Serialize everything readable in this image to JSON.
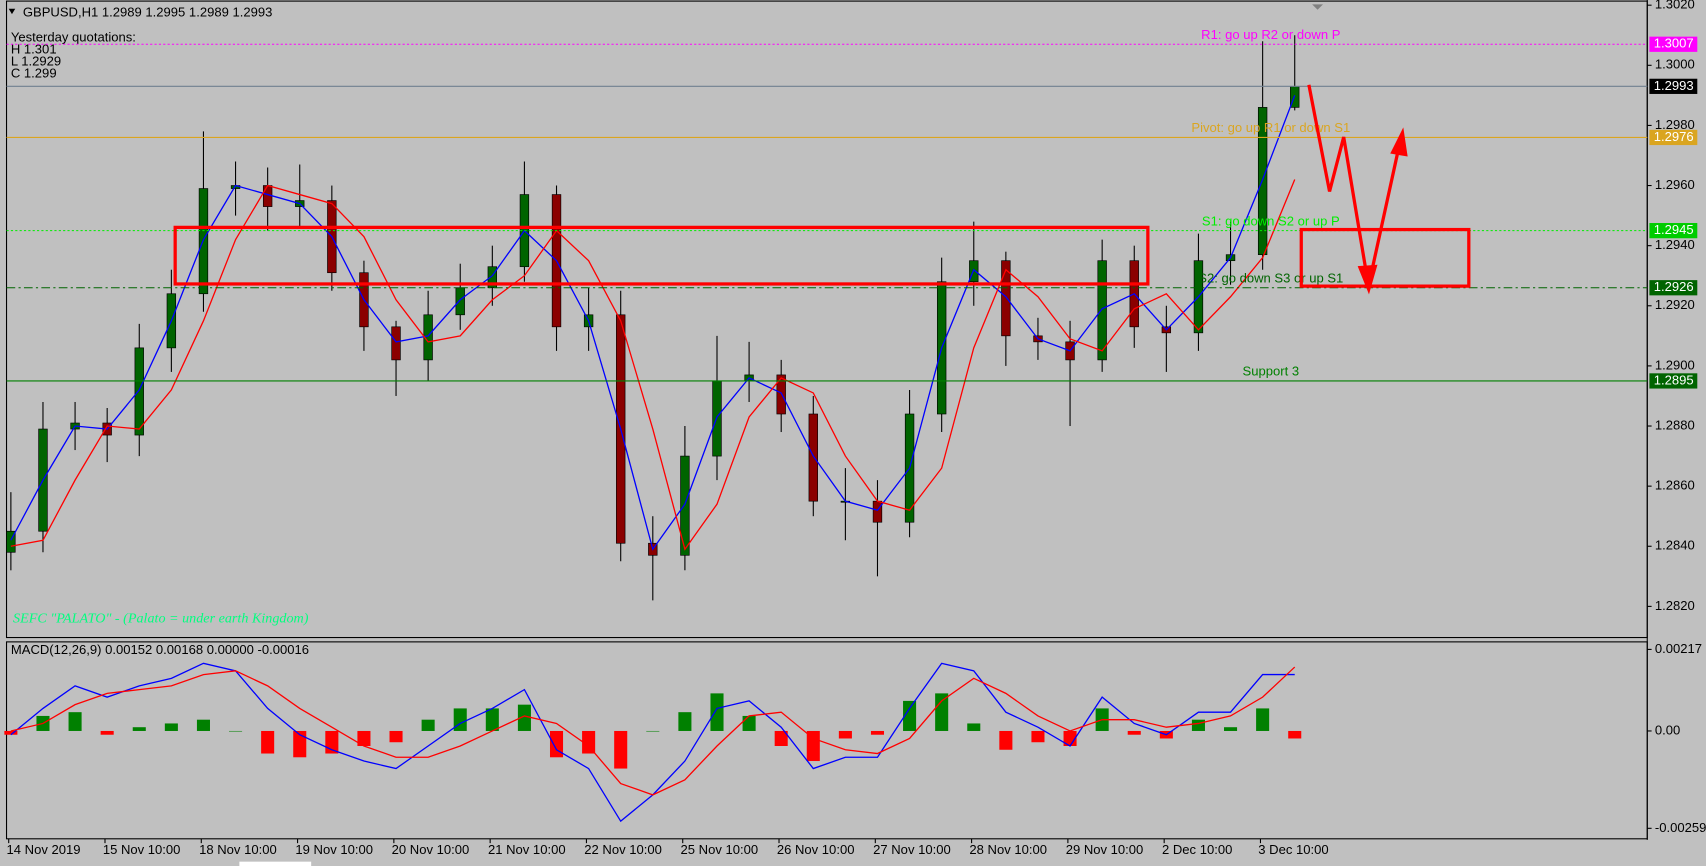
{
  "chart_data": [
    {
      "type": "candlestick",
      "title": "GBPUSD,H1  1.2989 1.2995 1.2989 1.2993",
      "annotations": [
        "Yesterday quotations:",
        "H 1.301",
        "L 1.2929",
        "C 1.299"
      ],
      "watermark": "SEFC \"PALATO\" - (Palato = under earth Kingdom)",
      "open": [
        1.2838,
        1.2845,
        1.2879,
        1.2881,
        1.2877,
        1.2906,
        1.2924,
        1.2959,
        1.296,
        1.2953,
        1.2955,
        1.2931,
        1.2913,
        1.2902,
        1.2917,
        1.2926,
        1.2933,
        1.2957,
        1.2913,
        1.2917,
        1.2841,
        1.2837,
        1.287,
        1.2895,
        1.2897,
        1.2884,
        1.2855,
        1.2855,
        1.2848,
        1.2884,
        1.2928,
        1.2935,
        1.291,
        1.2908,
        1.2902,
        1.2935,
        1.2913,
        1.2911,
        1.2935,
        1.2937,
        1.2986
      ],
      "high": [
        1.2858,
        1.2888,
        1.2888,
        1.2886,
        1.2914,
        1.2932,
        1.2978,
        1.2968,
        1.2966,
        1.2967,
        1.296,
        1.2935,
        1.2915,
        1.2925,
        1.2934,
        1.294,
        1.2968,
        1.296,
        1.2926,
        1.2925,
        1.285,
        1.288,
        1.291,
        1.2908,
        1.2902,
        1.289,
        1.2866,
        1.2862,
        1.2892,
        1.2936,
        1.2948,
        1.2938,
        1.2916,
        1.2915,
        1.2942,
        1.294,
        1.292,
        1.2944,
        1.2948,
        1.3008,
        1.301
      ],
      "low": [
        1.2832,
        1.2838,
        1.2872,
        1.2868,
        1.287,
        1.2898,
        1.2918,
        1.295,
        1.2945,
        1.2946,
        1.2925,
        1.2905,
        1.289,
        1.2895,
        1.2912,
        1.292,
        1.2928,
        1.2905,
        1.2905,
        1.2835,
        1.2822,
        1.2832,
        1.2862,
        1.2888,
        1.2878,
        1.285,
        1.2842,
        1.283,
        1.2843,
        1.2878,
        1.292,
        1.29,
        1.2902,
        1.288,
        1.2898,
        1.2906,
        1.2898,
        1.2905,
        1.2927,
        1.2932,
        1.2985
      ],
      "close": [
        1.2845,
        1.2879,
        1.2881,
        1.2877,
        1.2906,
        1.2924,
        1.2959,
        1.296,
        1.2953,
        1.2955,
        1.2931,
        1.2913,
        1.2902,
        1.2917,
        1.2926,
        1.2933,
        1.2957,
        1.2913,
        1.2917,
        1.2841,
        1.2837,
        1.287,
        1.2895,
        1.2897,
        1.2884,
        1.2855,
        1.2855,
        1.2848,
        1.2884,
        1.2928,
        1.2935,
        1.291,
        1.2908,
        1.2902,
        1.2935,
        1.2913,
        1.2911,
        1.2935,
        1.2937,
        1.2986,
        1.2993
      ],
      "up_color": "#006400",
      "down_color": "#8b0000",
      "wick_color": "#000000",
      "series": [
        {
          "color": "#0000ff",
          "values": [
            1.2842,
            1.2862,
            1.288,
            1.2879,
            1.2892,
            1.2915,
            1.2942,
            1.296,
            1.2957,
            1.2954,
            1.2943,
            1.2922,
            1.2908,
            1.291,
            1.2922,
            1.293,
            1.2945,
            1.2935,
            1.2915,
            1.2879,
            1.2839,
            1.2854,
            1.2883,
            1.2896,
            1.2891,
            1.287,
            1.2855,
            1.2852,
            1.2866,
            1.2906,
            1.2932,
            1.2923,
            1.2909,
            1.2905,
            1.2919,
            1.2924,
            1.2912,
            1.2923,
            1.2936,
            1.2962,
            1.299
          ]
        },
        {
          "color": "#ff0000",
          "values": [
            1.284,
            1.2842,
            1.2862,
            1.288,
            1.2879,
            1.2892,
            1.2915,
            1.2942,
            1.296,
            1.2957,
            1.2954,
            1.2943,
            1.2922,
            1.2908,
            1.291,
            1.2922,
            1.293,
            1.2945,
            1.2935,
            1.2915,
            1.2879,
            1.2839,
            1.2854,
            1.2883,
            1.2896,
            1.2891,
            1.287,
            1.2855,
            1.2852,
            1.2866,
            1.2906,
            1.2932,
            1.2923,
            1.2909,
            1.2905,
            1.2919,
            1.2924,
            1.2912,
            1.2923,
            1.2936,
            1.2962
          ]
        }
      ],
      "levels": [
        {
          "value": 1.3007,
          "text": "R1: go up R2 or down P",
          "color": "#ff00ff",
          "style": "dotted",
          "tag_color": "#ff00ff"
        },
        {
          "value": 1.2993,
          "color": "#708090",
          "style": "solid",
          "tag_color": "#000000"
        },
        {
          "value": 1.2976,
          "text": "Pivot: go up R1 or down S1",
          "color": "#daa520",
          "style": "solid",
          "tag_color": "#daa520"
        },
        {
          "value": 1.2945,
          "text": "S1: go down S2 or up P",
          "color": "#00ee00",
          "style": "dotted",
          "tag_color": "#00cc00"
        },
        {
          "value": 1.2926,
          "text": "S2: go down S3 or up S1",
          "color": "#006400",
          "style": "dashdot",
          "tag_color": "#006400"
        },
        {
          "value": 1.2895,
          "text": "Support 3",
          "color": "#008000",
          "style": "solid",
          "tag_color": "#006400"
        }
      ],
      "ylim": [
        1.281,
        1.3021
      ],
      "yticks": [
        {
          "value": 1.302,
          "label": "1.3020"
        },
        {
          "value": 1.3,
          "label": "1.3000"
        },
        {
          "value": 1.298,
          "label": "1.2980"
        },
        {
          "value": 1.296,
          "label": "1.2960"
        },
        {
          "value": 1.294,
          "label": "1.2940"
        },
        {
          "value": 1.292,
          "label": "1.2920"
        },
        {
          "value": 1.29,
          "label": "1.2900"
        },
        {
          "value": 1.288,
          "label": "1.2880"
        },
        {
          "value": 1.286,
          "label": "1.2860"
        },
        {
          "value": 1.284,
          "label": "1.2840"
        },
        {
          "value": 1.282,
          "label": "1.2820"
        }
      ],
      "xticks": [
        {
          "value": 0,
          "label": "14 Nov 2019"
        },
        {
          "value": 3,
          "label": "15 Nov 10:00"
        },
        {
          "value": 6,
          "label": "18 Nov 10:00"
        },
        {
          "value": 9,
          "label": "19 Nov 10:00"
        },
        {
          "value": 12,
          "label": "20 Nov 10:00"
        },
        {
          "value": 15,
          "label": "21 Nov 10:00"
        },
        {
          "value": 18,
          "label": "22 Nov 10:00"
        },
        {
          "value": 21,
          "label": "25 Nov 10:00"
        },
        {
          "value": 24,
          "label": "26 Nov 10:00"
        },
        {
          "value": 27,
          "label": "27 Nov 10:00"
        },
        {
          "value": 30,
          "label": "28 Nov 10:00"
        },
        {
          "value": 33,
          "label": "29 Nov 10:00"
        },
        {
          "value": 36,
          "label": "2 Dec 10:00"
        },
        {
          "value": 39,
          "label": "3 Dec 10:00"
        }
      ],
      "grid": false
    },
    {
      "type": "bar",
      "title": "MACD(12,26,9) 0.00152 0.00168 0.00000 -0.00016",
      "values": [
        -0.0001,
        0.0004,
        0.0005,
        -0.0001,
        0.0001,
        0.0002,
        0.0003,
        0,
        -0.0006,
        -0.0007,
        -0.0006,
        -0.0004,
        -0.0003,
        0.0003,
        0.0006,
        0.0006,
        0.0007,
        -0.0007,
        -0.0006,
        -0.001,
        0,
        0.0005,
        0.001,
        0.0004,
        -0.0004,
        -0.0008,
        -0.0002,
        -0.0001,
        0.0008,
        0.001,
        0.0002,
        -0.0005,
        -0.0003,
        -0.0004,
        0.0006,
        -0.0001,
        -0.0002,
        0.0003,
        0.0001,
        0.0006,
        -0.0002
      ],
      "up_color": "#008000",
      "down_color": "#ff0000",
      "series": [
        {
          "color": "#0000ff",
          "values": [
            -0.0001,
            0.0006,
            0.0012,
            0.0009,
            0.0012,
            0.0014,
            0.0018,
            0.0016,
            0.0006,
            -0.0001,
            -0.0005,
            -0.0008,
            -0.001,
            -0.0004,
            0.0002,
            0.0006,
            0.0011,
            -0.0005,
            -0.001,
            -0.0024,
            -0.0017,
            -0.0008,
            0.0006,
            0.0008,
            0.0001,
            -0.001,
            -0.0007,
            -0.0007,
            0.0006,
            0.0018,
            0.0016,
            0.0005,
            0.0001,
            -0.0004,
            0.0009,
            0.0002,
            -0.0001,
            0.0005,
            0.0005,
            0.0015,
            0.0015
          ]
        },
        {
          "color": "#ff0000",
          "values": [
            0,
            0.0002,
            0.0007,
            0.001,
            0.0011,
            0.0012,
            0.0015,
            0.0016,
            0.0012,
            0.0006,
            0.0001,
            -0.0004,
            -0.0007,
            -0.0007,
            -0.0004,
            0,
            0.0004,
            0.0002,
            -0.0004,
            -0.0014,
            -0.0017,
            -0.0013,
            -0.0004,
            0.0004,
            0.0005,
            -0.0002,
            -0.0005,
            -0.0006,
            -0.0002,
            0.0008,
            0.0014,
            0.001,
            0.0004,
            0,
            0.0003,
            0.0003,
            0.0001,
            0.0002,
            0.0004,
            0.0009,
            0.0017
          ]
        }
      ],
      "ylim": [
        -0.00284,
        0.00237
      ],
      "yticks": [
        0.00217,
        {
          "value": 0,
          "label": "0.00"
        },
        -0.00259
      ]
    }
  ]
}
